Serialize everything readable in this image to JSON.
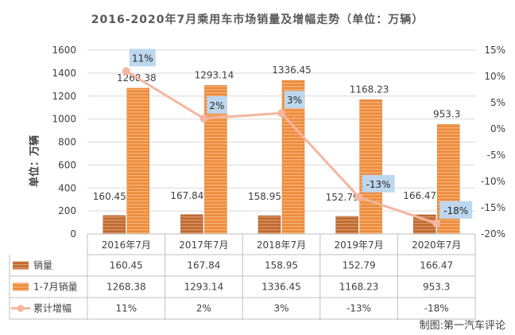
{
  "title": "2016-2020年7月乘用车市场销量及增幅走势（单位：万辆）",
  "ylabel": "单位：万辆",
  "credit": "制图:第一汽车评论",
  "colors": {
    "bar_sales": "#c0682f",
    "bar_cum": "#ed8b3c",
    "line": "#f4b6a0",
    "label_bg": "#bdd7ee",
    "grid": "#d9d9d9",
    "text": "#404040"
  },
  "chart_data": {
    "type": "bar",
    "categories": [
      "2016年7月",
      "2017年7月",
      "2018年7月",
      "2019年7月",
      "2020年7月"
    ],
    "series": [
      {
        "name": "销量",
        "type": "bar",
        "axis": "left",
        "values": [
          160.45,
          167.84,
          158.95,
          152.79,
          166.47
        ],
        "labels": [
          "160.45",
          "167.84",
          "158.95",
          "152.79",
          "166.47"
        ]
      },
      {
        "name": "1-7月销量",
        "type": "bar",
        "axis": "left",
        "values": [
          1268.38,
          1293.14,
          1336.45,
          1168.23,
          953.3
        ],
        "labels": [
          "1268.38",
          "1293.14",
          "1336.45",
          "1168.23",
          "953.3"
        ]
      },
      {
        "name": "累计增幅",
        "type": "line",
        "axis": "right",
        "values": [
          11,
          2,
          3,
          -13,
          -18
        ],
        "labels": [
          "11%",
          "2%",
          "3%",
          "-13%",
          "-18%"
        ]
      }
    ],
    "ylim": [
      0,
      1600
    ],
    "yticks": [
      "0",
      "200",
      "400",
      "600",
      "800",
      "1000",
      "1200",
      "1400",
      "1600"
    ],
    "y2lim": [
      -20,
      15
    ],
    "y2ticks": [
      "-20%",
      "-15%",
      "-10%",
      "-5%",
      "0%",
      "5%",
      "10%",
      "15%"
    ],
    "grid": true,
    "legend": "data-table"
  }
}
